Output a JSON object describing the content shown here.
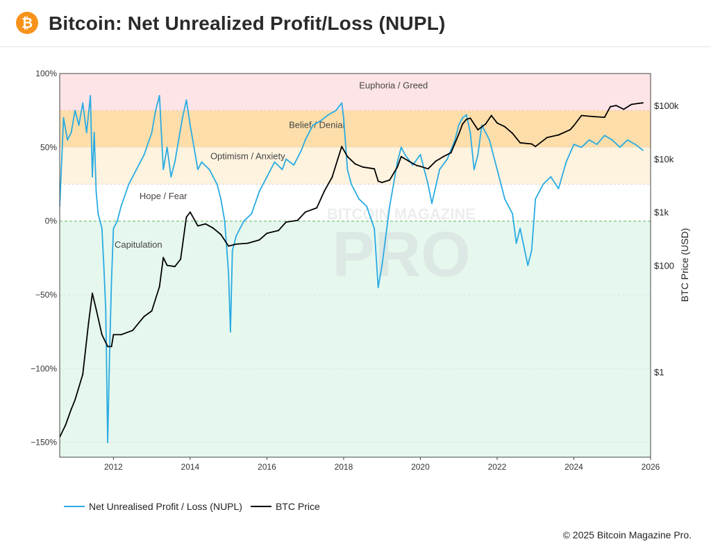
{
  "header": {
    "title": "Bitcoin: Net Unrealized Profit/Loss (NUPL)",
    "logo_glyph": "₿",
    "logo_color": "#f7931a"
  },
  "watermark": {
    "line1": "BITCOIN MAGAZINE",
    "line2": "PRO"
  },
  "footer": {
    "copyright": "© 2025 Bitcoin Magazine Pro."
  },
  "legend": [
    {
      "label": "Net Unrealised Profit / Loss (NUPL)",
      "color": "#29abe2"
    },
    {
      "label": "BTC Price",
      "color": "#000000"
    }
  ],
  "colors": {
    "nupl": "#29abe2",
    "price": "#000000",
    "euphoria": "#fde4e7",
    "belief": "#fddeaa",
    "optimism": "#fdf3df",
    "hope": "#ffffff",
    "capitulation": "#e6f7ee",
    "zero_line": "#5cb85c"
  },
  "chart_data": {
    "type": "line",
    "title": "Bitcoin: Net Unrealized Profit/Loss (NUPL)",
    "xlabel": "",
    "ylabel": "",
    "y2label": "BTC Price (USD)",
    "xlim": [
      2010.6,
      2026.0
    ],
    "ylim": [
      -160,
      100
    ],
    "y2_scale": "log",
    "y2lim_log10": [
      -1.6,
      5.6
    ],
    "x_ticks": [
      2012,
      2014,
      2016,
      2018,
      2020,
      2022,
      2024,
      2026
    ],
    "x_tick_labels": [
      "2012",
      "2014",
      "2016",
      "2018",
      "2020",
      "2022",
      "2024",
      "2026"
    ],
    "y_ticks": [
      100,
      50,
      0,
      -50,
      -100,
      -150
    ],
    "y_tick_labels": [
      "100%",
      "50%",
      "0%",
      "−50%",
      "−100%",
      "−150%"
    ],
    "y2_ticks": [
      100000,
      10000,
      1000,
      100,
      1
    ],
    "y2_tick_labels": [
      "$100k",
      "$10k",
      "$1k",
      "$100",
      "$1"
    ],
    "zones": [
      {
        "name": "euphoria",
        "label": "Euphoria / Greed",
        "from": 75,
        "to": 100,
        "label_x": 2019.3,
        "label_y": 90
      },
      {
        "name": "belief",
        "label": "Belief / Denial",
        "from": 50,
        "to": 75,
        "label_x": 2017.3,
        "label_y": 63
      },
      {
        "name": "optimism",
        "label": "Optimism / Anxiety",
        "from": 25,
        "to": 50,
        "label_x": 2015.5,
        "label_y": 42
      },
      {
        "name": "hope",
        "label": "Hope / Fear",
        "from": 0,
        "to": 25,
        "label_x": 2013.3,
        "label_y": 15
      },
      {
        "name": "capitulation",
        "label": "Capitulation",
        "from": -160,
        "to": 0,
        "label_x": 2012.65,
        "label_y": -18
      }
    ],
    "series": [
      {
        "name": "Net Unrealised Profit / Loss (NUPL)",
        "axis": "left",
        "x": [
          2010.6,
          2010.7,
          2010.8,
          2010.9,
          2011.0,
          2011.1,
          2011.2,
          2011.3,
          2011.4,
          2011.45,
          2011.5,
          2011.55,
          2011.6,
          2011.7,
          2011.75,
          2011.8,
          2011.85,
          2011.9,
          2011.95,
          2012.0,
          2012.1,
          2012.2,
          2012.4,
          2012.6,
          2012.8,
          2013.0,
          2013.1,
          2013.2,
          2013.25,
          2013.3,
          2013.4,
          2013.5,
          2013.6,
          2013.7,
          2013.8,
          2013.9,
          2014.0,
          2014.1,
          2014.2,
          2014.3,
          2014.5,
          2014.7,
          2014.8,
          2014.9,
          2015.0,
          2015.05,
          2015.1,
          2015.2,
          2015.4,
          2015.6,
          2015.8,
          2016.0,
          2016.2,
          2016.4,
          2016.5,
          2016.7,
          2016.9,
          2017.0,
          2017.2,
          2017.4,
          2017.6,
          2017.8,
          2017.95,
          2018.0,
          2018.1,
          2018.2,
          2018.4,
          2018.6,
          2018.8,
          2018.9,
          2019.0,
          2019.2,
          2019.4,
          2019.5,
          2019.6,
          2019.8,
          2020.0,
          2020.2,
          2020.3,
          2020.5,
          2020.7,
          2020.9,
          2021.0,
          2021.1,
          2021.2,
          2021.3,
          2021.4,
          2021.5,
          2021.6,
          2021.8,
          2021.9,
          2022.0,
          2022.2,
          2022.4,
          2022.5,
          2022.6,
          2022.8,
          2022.9,
          2023.0,
          2023.2,
          2023.4,
          2023.6,
          2023.8,
          2024.0,
          2024.2,
          2024.4,
          2024.6,
          2024.8,
          2025.0,
          2025.2,
          2025.4,
          2025.6,
          2025.8
        ],
        "values": [
          10,
          70,
          55,
          60,
          75,
          65,
          80,
          60,
          85,
          30,
          60,
          20,
          5,
          -5,
          -30,
          -60,
          -150,
          -90,
          -40,
          -5,
          0,
          10,
          25,
          35,
          45,
          60,
          75,
          85,
          60,
          35,
          50,
          30,
          40,
          55,
          70,
          82,
          65,
          50,
          35,
          40,
          35,
          25,
          15,
          0,
          -35,
          -75,
          -20,
          -10,
          0,
          5,
          20,
          30,
          40,
          35,
          42,
          38,
          48,
          55,
          65,
          68,
          72,
          75,
          80,
          70,
          35,
          25,
          15,
          10,
          -5,
          -45,
          -30,
          10,
          40,
          50,
          45,
          38,
          45,
          25,
          12,
          35,
          42,
          55,
          65,
          70,
          72,
          60,
          35,
          45,
          65,
          55,
          45,
          35,
          15,
          5,
          -15,
          -5,
          -30,
          -20,
          15,
          25,
          30,
          22,
          40,
          52,
          50,
          55,
          52,
          58,
          55,
          50,
          55,
          52,
          48
        ]
      },
      {
        "name": "BTC Price",
        "axis": "right",
        "x": [
          2010.6,
          2010.75,
          2010.9,
          2011.0,
          2011.2,
          2011.35,
          2011.45,
          2011.55,
          2011.7,
          2011.85,
          2011.95,
          2012.0,
          2012.2,
          2012.5,
          2012.8,
          2013.0,
          2013.2,
          2013.3,
          2013.4,
          2013.6,
          2013.75,
          2013.9,
          2014.0,
          2014.2,
          2014.4,
          2014.6,
          2014.8,
          2015.0,
          2015.2,
          2015.5,
          2015.8,
          2016.0,
          2016.3,
          2016.5,
          2016.8,
          2017.0,
          2017.3,
          2017.5,
          2017.7,
          2017.85,
          2017.95,
          2018.1,
          2018.3,
          2018.5,
          2018.8,
          2018.9,
          2019.0,
          2019.2,
          2019.4,
          2019.5,
          2019.7,
          2019.9,
          2020.0,
          2020.2,
          2020.4,
          2020.6,
          2020.8,
          2021.0,
          2021.1,
          2021.2,
          2021.3,
          2021.5,
          2021.7,
          2021.85,
          2022.0,
          2022.2,
          2022.4,
          2022.6,
          2022.9,
          2023.0,
          2023.3,
          2023.6,
          2023.9,
          2024.0,
          2024.2,
          2024.5,
          2024.8,
          2024.95,
          2025.1,
          2025.3,
          2025.5,
          2025.7,
          2025.8
        ],
        "values": [
          0.06,
          0.1,
          0.2,
          0.3,
          0.9,
          8,
          30,
          15,
          5,
          3,
          3,
          5,
          5,
          6,
          11,
          14,
          40,
          140,
          100,
          95,
          130,
          800,
          1000,
          550,
          600,
          500,
          380,
          230,
          250,
          260,
          300,
          400,
          450,
          650,
          700,
          1000,
          1200,
          2500,
          4500,
          10000,
          17000,
          11000,
          8000,
          7000,
          6500,
          3800,
          3600,
          4000,
          7000,
          11000,
          9000,
          7500,
          7200,
          6500,
          9000,
          11000,
          13000,
          29000,
          45000,
          55000,
          58000,
          35000,
          45000,
          65000,
          47000,
          40000,
          30000,
          20000,
          19000,
          17000,
          25000,
          28000,
          35000,
          42000,
          65000,
          62000,
          60000,
          95000,
          100000,
          85000,
          105000,
          110000,
          112000
        ]
      }
    ]
  }
}
